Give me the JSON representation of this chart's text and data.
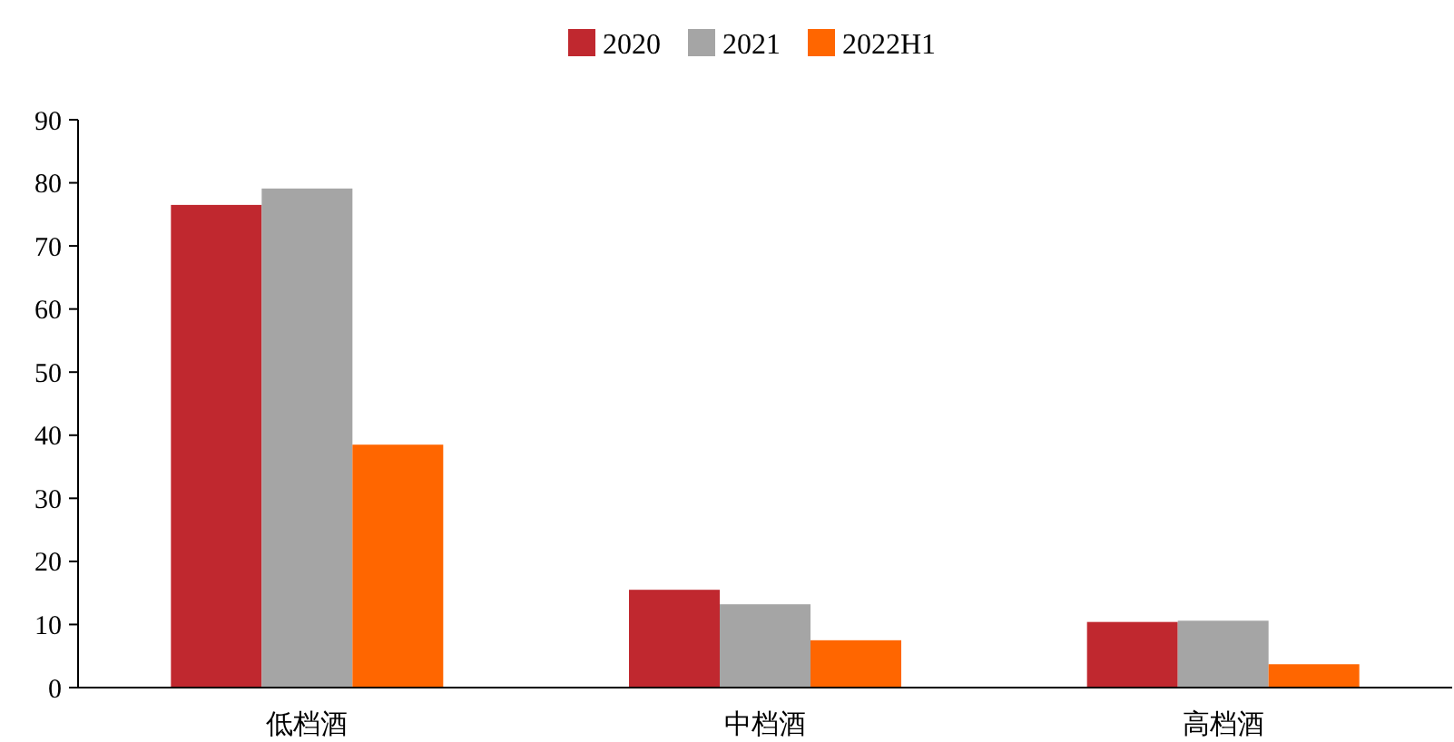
{
  "chart_data": {
    "type": "bar",
    "categories": [
      "低档酒",
      "中档酒",
      "高档酒"
    ],
    "series": [
      {
        "name": "2020",
        "color": "#c0282f",
        "values": [
          76.5,
          15.5,
          10.4
        ]
      },
      {
        "name": "2021",
        "color": "#a5a5a5",
        "values": [
          79.1,
          13.2,
          10.6
        ]
      },
      {
        "name": "2022H1",
        "color": "#ff6600",
        "values": [
          38.5,
          7.5,
          3.7
        ]
      }
    ],
    "ylim": [
      0,
      90
    ],
    "yticks": [
      0,
      10,
      20,
      30,
      40,
      50,
      60,
      70,
      80,
      90
    ],
    "grid": false,
    "legend": "top"
  }
}
